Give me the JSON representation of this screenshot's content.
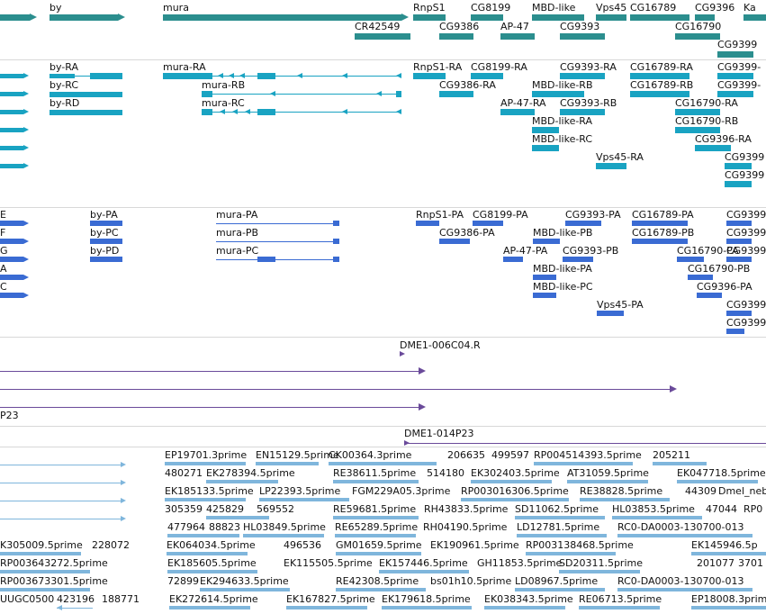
{
  "colors": {
    "genes": "#2b8e8e",
    "transcripts": "#19a3c2",
    "proteins": "#3a6bd3",
    "clones": "#6a4a9a",
    "est": "#7fb6dc"
  },
  "gene_track": {
    "labels": [
      "by",
      "mura",
      "RnpS1",
      "CG8199",
      "MBD-like",
      "Vps45",
      "CG16789",
      "CG9396",
      "Ka",
      "CR42549",
      "CG9386",
      "AP-47",
      "CG9393",
      "CG16790",
      "CG9399"
    ]
  },
  "transcript_track": {
    "labels": [
      "by-RA",
      "by-RC",
      "by-RD",
      "mura-RA",
      "mura-RB",
      "mura-RC",
      "RnpS1-RA",
      "CG8199-RA",
      "CG9393-RA",
      "CG16789-RA",
      "CG9399-",
      "CG9386-RA",
      "MBD-like-RB",
      "CG16789-RB",
      "CG9399-",
      "AP-47-RA",
      "CG9393-RB",
      "CG16790-RA",
      "MBD-like-RA",
      "CG16790-RB",
      "MBD-like-RC",
      "CG9396-RA",
      "Vps45-RA",
      "CG9399",
      "CG9399"
    ]
  },
  "protein_track": {
    "labels": [
      "E",
      "F",
      "G",
      "A",
      "C",
      "by-PA",
      "by-PC",
      "by-PD",
      "mura-PA",
      "mura-PB",
      "mura-PC",
      "RnpS1-PA",
      "CG8199-PA",
      "CG9393-PA",
      "CG16789-PA",
      "CG9399",
      "CG9386-PA",
      "MBD-like-PB",
      "CG16789-PB",
      "CG9399",
      "AP-47-PA",
      "CG9393-PB",
      "CG16790-PA",
      "CG9399",
      "MBD-like-PA",
      "CG16790-PB",
      "MBD-like-PC",
      "CG9396-PA",
      "Vps45-PA",
      "CG9399",
      "CG9399"
    ]
  },
  "clone_track": {
    "labels": [
      "DME1-006C04.R",
      "P23",
      "DME1-014P23"
    ]
  },
  "est_track": {
    "labels": [
      "EP19701.3prime",
      "EN15129.5prime",
      "CK00364.3prime",
      "206635",
      "499597",
      "RP004514393.5prime",
      "205211",
      "480271",
      "EK278394.5prime",
      "RE38611.5prime",
      "514180",
      "EK302403.5prime",
      "AT31059.5prime",
      "EK047718.5prime",
      "EK185133.5prime",
      "LP22393.5prime",
      "FGM229A05.3prime",
      "RP003016306.5prime",
      "RE38828.5prime",
      "44309",
      "Dmel_neb",
      "305359",
      "425829",
      "569552",
      "RE59681.5prime",
      "RH43833.5prime",
      "SD11062.5prime",
      "HL03853.5prime",
      "47044",
      "RP0",
      "477964",
      "88823",
      "HL03849.5prime",
      "RE65289.5prime",
      "RH04190.5prime",
      "LD12781.5prime",
      "RC0-DA0003-130700-013",
      "K305009.5prime",
      "228072",
      "EK064034.5prime",
      "496536",
      "GM01659.5prime",
      "EK190961.5prime",
      "RP003138468.5prime",
      "EK145946.5p",
      "RP003643272.5prime",
      "EK185605.5prime",
      "EK115505.5prime",
      "EK157446.5prime",
      "GH11853.5prime",
      "SD20311.5prime",
      "201077",
      "3701",
      "RP003673301.5prime",
      "72899",
      "EK294633.5prime",
      "RE42308.5prime",
      "bs01h10.5prime",
      "LD08967.5prime",
      "RC0-DA0003-130700-013",
      "UUGC0500",
      "423196",
      "188771",
      "EK272614.5prime",
      "EK167827.5prime",
      "EK179618.5prime",
      "EK038343.5prime",
      "RE06713.5prime",
      "EP18008.3prime"
    ]
  }
}
